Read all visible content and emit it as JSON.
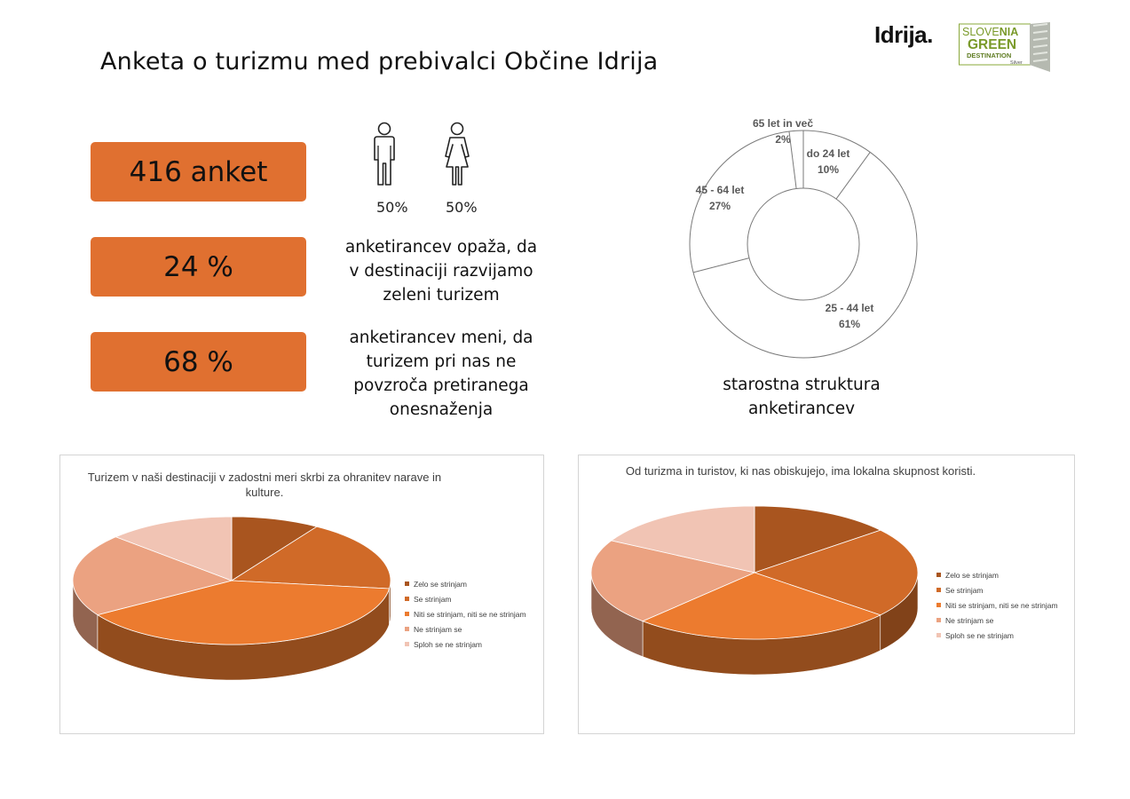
{
  "header": {
    "title": "Anketa o turizmu med prebivalci Občine Idrija",
    "logo_text": "Idrija.",
    "badge": {
      "line1_a": "SLOVE",
      "line1_b": "NIA",
      "line2": "GREEN",
      "line3": "DESTINATION",
      "line4": "Silver"
    }
  },
  "stats": [
    {
      "value": "416 anket"
    },
    {
      "value": "24 %",
      "description_lines": [
        "anketirancev opaža, da",
        "v destinaciji razvijamo",
        "zeleni turizem"
      ]
    },
    {
      "value": "68 %",
      "description_lines": [
        "anketirancev meni, da",
        "turizem pri nas ne",
        "povzroča pretiranega",
        "onesnaženja"
      ]
    }
  ],
  "gender": {
    "male_pct": "50%",
    "female_pct": "50%",
    "male_icon": "man-icon",
    "female_icon": "woman-icon"
  },
  "colors": {
    "accent": "#e07030",
    "brown": "#a9551f",
    "orange": "#d06a28",
    "bright_orange": "#ec7b2f",
    "salmon": "#eba281",
    "light_pink": "#f1c4b4"
  },
  "chart_data": [
    {
      "type": "pie",
      "variant": "donut",
      "caption_lines": [
        "starostna struktura",
        "anketirancev"
      ],
      "categories": [
        "do 24 let",
        "25 - 44 let",
        "45 - 64 let",
        "65 let in več"
      ],
      "values": [
        10,
        61,
        27,
        2
      ],
      "value_labels": [
        "10%",
        "61%",
        "27%",
        "2%"
      ]
    },
    {
      "type": "pie",
      "variant": "3d",
      "title_lines": [
        "Turizem v naši destinaciji v zadostni meri skrbi za ohranitev narave in",
        "kulture."
      ],
      "categories": [
        "Zelo se strinjam",
        "Se strinjam",
        "Niti se strinjam, niti se ne strinjam",
        "Ne strinjam se",
        "Sploh se ne strinjam"
      ],
      "values": [
        9,
        18,
        39,
        21,
        13
      ],
      "colors": [
        "#a9551f",
        "#d06a28",
        "#ec7b2f",
        "#eba281",
        "#f1c4b4"
      ],
      "legend_position": "right"
    },
    {
      "type": "pie",
      "variant": "3d",
      "title_lines": [
        "Od turizma in turistov, ki nas obiskujejo, ima lokalna skupnost koristi."
      ],
      "categories": [
        "Zelo se strinjam",
        "Se strinjam",
        "Niti se strinjam, niti se ne strinjam",
        "Ne strinjam se",
        "Sploh se ne strinjam"
      ],
      "values": [
        14,
        22,
        26,
        21,
        17
      ],
      "colors": [
        "#a9551f",
        "#d06a28",
        "#ec7b2f",
        "#eba281",
        "#f1c4b4"
      ],
      "legend_position": "right"
    }
  ]
}
